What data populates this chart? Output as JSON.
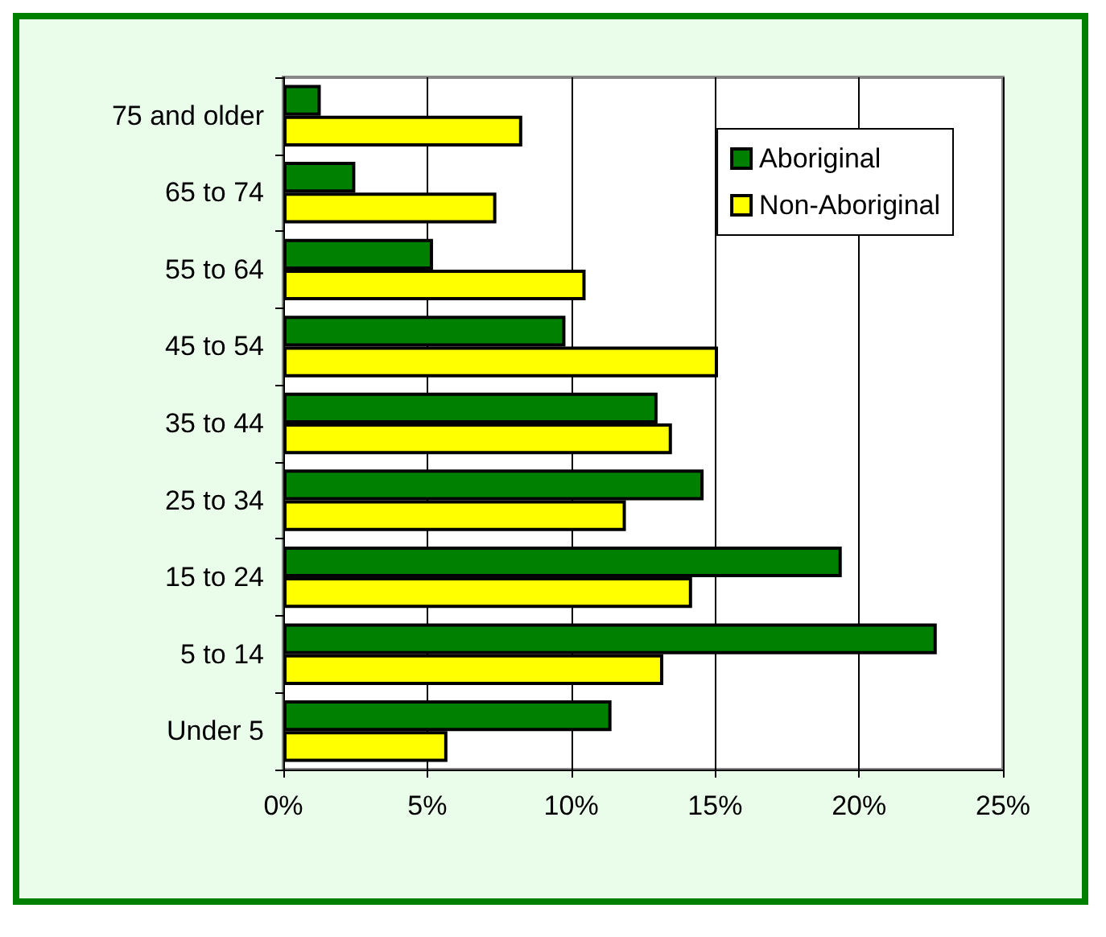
{
  "chart_data": {
    "type": "bar",
    "orientation": "horizontal",
    "categories": [
      "75 and older",
      "65 to 74",
      "55 to 64",
      "45 to 54",
      "35 to 44",
      "25 to 34",
      "15 to 24",
      "5 to 14",
      "Under 5"
    ],
    "series": [
      {
        "name": "Aboriginal",
        "color": "#008000",
        "values": [
          1.3,
          2.5,
          5.2,
          9.8,
          13.0,
          14.6,
          19.4,
          22.7,
          11.4
        ]
      },
      {
        "name": "Non-Aboriginal",
        "color": "#ffff00",
        "values": [
          8.3,
          7.4,
          10.5,
          15.1,
          13.5,
          11.9,
          14.2,
          13.2,
          5.7
        ]
      }
    ],
    "xlim": [
      0,
      25
    ],
    "xticks": [
      {
        "value": 0,
        "label": "0%"
      },
      {
        "value": 5,
        "label": "5%"
      },
      {
        "value": 10,
        "label": "10%"
      },
      {
        "value": 15,
        "label": "15%"
      },
      {
        "value": 20,
        "label": "20%"
      },
      {
        "value": 25,
        "label": "25%"
      }
    ],
    "grid": "x",
    "legend": "top right"
  }
}
